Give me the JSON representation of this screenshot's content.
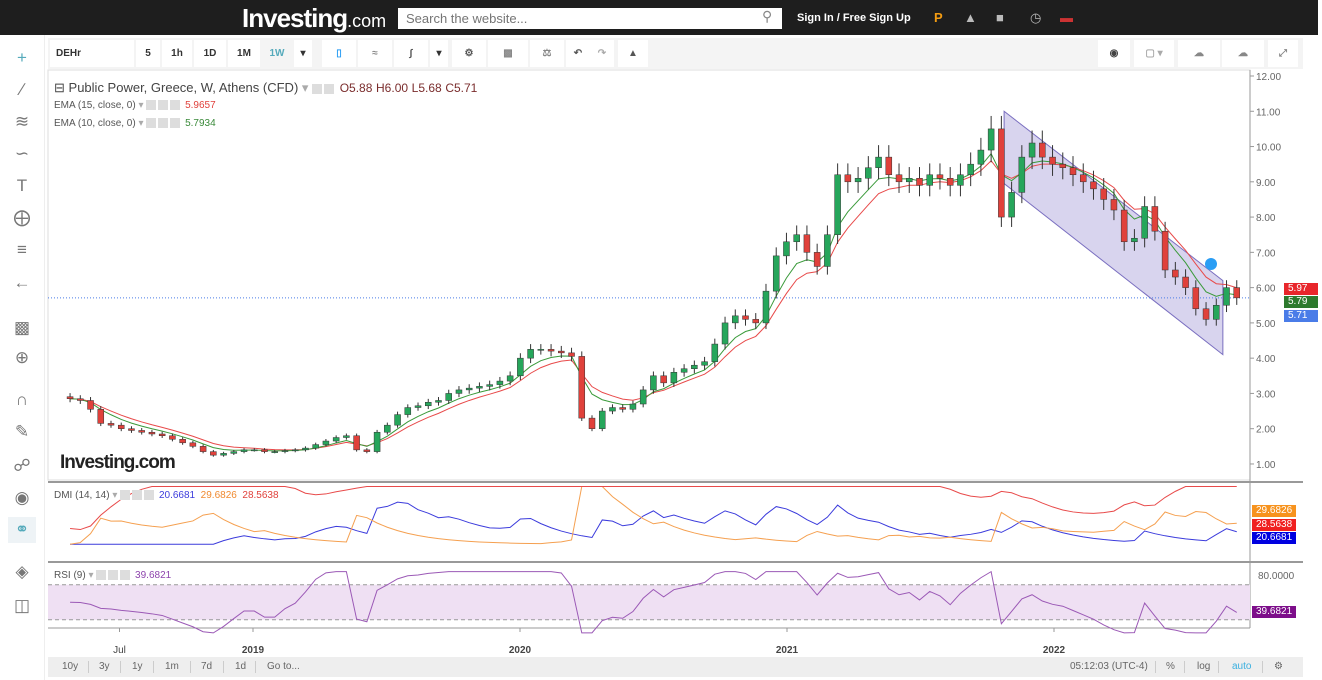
{
  "header": {
    "logo": "Investing",
    "logo_suffix": ".com",
    "search_placeholder": "Search the website...",
    "signin": "Sign In / Free Sign Up",
    "icons": [
      "investing-pro-icon",
      "bell-icon",
      "portfolio-icon",
      "clock-icon",
      "us-flag-icon"
    ]
  },
  "toolbar": {
    "symbol": "DEHr",
    "intervals": [
      "5",
      "1h",
      "1D",
      "1M",
      "1W"
    ],
    "active_interval": "1W"
  },
  "legend": {
    "title": "Public Power, Greece, W, Athens (CFD)",
    "open": "O5.88",
    "high": "H6.00",
    "low": "L5.68",
    "close": "C5.71",
    "ema15_label": "EMA (15, close, 0)",
    "ema15_value": "5.9657",
    "ema10_label": "EMA (10, close, 0)",
    "ema10_value": "5.7934",
    "dmi_label": "DMI (14, 14)",
    "dmi_plus": "20.6681",
    "dmi_minus": "29.6826",
    "dmi_adx": "28.5638",
    "rsi_label": "RSI (9)",
    "rsi_value": "39.6821"
  },
  "price_tags": {
    "ema15": "5.97",
    "ema10": "5.79",
    "last": "5.71",
    "dmi_minus": "29.6826",
    "dmi_adx": "28.5638",
    "dmi_plus": "20.6681",
    "rsi": "39.6821",
    "rsi_axis": "80.0000"
  },
  "bottom": {
    "ranges": [
      "10y",
      "3y",
      "1y",
      "1m",
      "7d",
      "1d",
      "Go to..."
    ],
    "time": "05:12:03 (UTC-4)",
    "pct": "%",
    "log": "log",
    "auto": "auto"
  },
  "watermark": "Investing.com",
  "chart_data": {
    "type": "candlestick",
    "symbol": "DEHr",
    "interval_weeks": 2,
    "start_date": "2018-04-26",
    "y_ticks": [
      "12.00",
      "11.00",
      "10.00",
      "9.00",
      "8.00",
      "7.00",
      "6.00",
      "5.00",
      "4.00",
      "3.00",
      "2.00",
      "1.00"
    ],
    "ylim": [
      1,
      12
    ],
    "x_ticks": [
      "Jul",
      "2019",
      "2020",
      "2021",
      "2022"
    ],
    "close": [
      2.85,
      2.8,
      2.55,
      2.15,
      2.1,
      2.0,
      1.95,
      1.9,
      1.85,
      1.8,
      1.7,
      1.6,
      1.5,
      1.35,
      1.25,
      1.3,
      1.35,
      1.4,
      1.4,
      1.35,
      1.35,
      1.38,
      1.4,
      1.45,
      1.55,
      1.65,
      1.75,
      1.8,
      1.4,
      1.35,
      1.9,
      2.1,
      2.4,
      2.6,
      2.65,
      2.75,
      2.8,
      3.0,
      3.1,
      3.15,
      3.2,
      3.25,
      3.35,
      3.5,
      4.0,
      4.25,
      4.25,
      4.2,
      4.15,
      4.05,
      2.3,
      2.0,
      2.5,
      2.6,
      2.55,
      2.7,
      3.1,
      3.5,
      3.3,
      3.6,
      3.7,
      3.8,
      3.9,
      4.4,
      5.0,
      5.2,
      5.1,
      5.0,
      5.9,
      6.9,
      7.3,
      7.5,
      7.0,
      6.6,
      7.5,
      9.2,
      9.0,
      9.1,
      9.4,
      9.7,
      9.2,
      9.0,
      9.1,
      8.9,
      9.2,
      9.1,
      8.9,
      9.2,
      9.5,
      9.9,
      10.5,
      8.0,
      8.7,
      9.7,
      10.1,
      9.7,
      9.5,
      9.4,
      9.2,
      9.0,
      8.8,
      8.5,
      8.2,
      7.3,
      7.4,
      8.3,
      7.6,
      6.5,
      6.3,
      6.0,
      5.4,
      5.1,
      5.5,
      6.0,
      5.71
    ],
    "last_price": 5.71,
    "channel": {
      "start_date": "2021-10-25",
      "end_date": "2022-08-20",
      "upper": [
        11.0,
        6.2
      ],
      "lower": [
        8.95,
        4.1
      ]
    },
    "colors": {
      "up": "#26a65b",
      "down": "#e0413b",
      "ema15": "#e84a4a",
      "ema10": "#3a9a3a",
      "dmi_plus": "#3b3bdc",
      "dmi_minus": "#f5a050",
      "dmi_adx": "#e84a4a",
      "rsi": "#9b59b6",
      "channel": "#b8b0e0"
    }
  }
}
